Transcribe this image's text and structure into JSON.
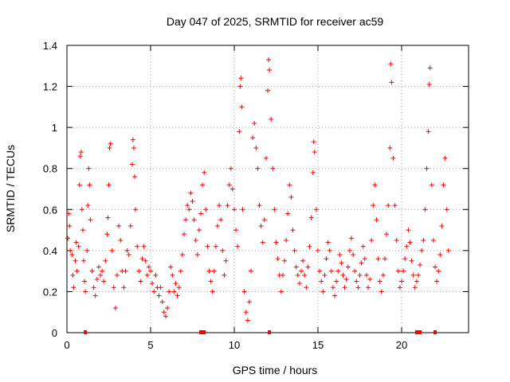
{
  "chart_data": {
    "type": "scatter",
    "title": "Day 047 of 2025, SRMTID for receiver ac59",
    "xlabel": "GPS time / hours",
    "ylabel": "SRMTID / TECUs",
    "xlim": [
      0,
      24
    ],
    "ylim": [
      0,
      1.4
    ],
    "xticks": [
      0,
      5,
      10,
      15,
      20
    ],
    "xtick_labels": [
      "0",
      "5",
      "10",
      "15",
      "20"
    ],
    "yticks": [
      0,
      0.2,
      0.4,
      0.6,
      0.8,
      1.0,
      1.2,
      1.4
    ],
    "ytick_labels": [
      "0",
      "0.2",
      "0.4",
      "0.6",
      "0.8",
      "1",
      "1.2",
      "1.4"
    ],
    "grid": true,
    "marker": "+",
    "color": "#ff0000",
    "series": [
      {
        "name": "SRMTID",
        "points": [
          [
            0.05,
            0.46
          ],
          [
            0.1,
            0.58
          ],
          [
            0.15,
            0.52
          ],
          [
            0.2,
            0.4
          ],
          [
            0.3,
            0.38
          ],
          [
            0.35,
            0.28
          ],
          [
            0.4,
            0.22
          ],
          [
            0.5,
            0.35
          ],
          [
            0.55,
            0.44
          ],
          [
            0.6,
            0.3
          ],
          [
            0.7,
            0.42
          ],
          [
            0.75,
            0.72
          ],
          [
            0.8,
            0.86
          ],
          [
            0.85,
            0.88
          ],
          [
            0.9,
            0.6
          ],
          [
            0.95,
            0.5
          ],
          [
            1.0,
            0.35
          ],
          [
            1.05,
            0.25
          ],
          [
            1.1,
            0.2
          ],
          [
            1.2,
            0.4
          ],
          [
            1.25,
            0.62
          ],
          [
            1.3,
            0.8
          ],
          [
            1.35,
            0.72
          ],
          [
            1.4,
            0.55
          ],
          [
            1.5,
            0.3
          ],
          [
            1.6,
            0.22
          ],
          [
            1.7,
            0.18
          ],
          [
            1.8,
            0.26
          ],
          [
            1.9,
            0.32
          ],
          [
            2.0,
            0.28
          ],
          [
            2.1,
            0.3
          ],
          [
            2.2,
            0.25
          ],
          [
            2.3,
            0.35
          ],
          [
            2.4,
            0.48
          ],
          [
            2.45,
            0.56
          ],
          [
            2.5,
            0.72
          ],
          [
            2.55,
            0.9
          ],
          [
            2.6,
            0.92
          ],
          [
            2.7,
            0.4
          ],
          [
            2.8,
            0.22
          ],
          [
            2.9,
            0.12
          ],
          [
            3.0,
            0.28
          ],
          [
            3.1,
            0.52
          ],
          [
            3.2,
            0.45
          ],
          [
            3.3,
            0.3
          ],
          [
            3.4,
            0.22
          ],
          [
            3.5,
            0.3
          ],
          [
            3.6,
            0.4
          ],
          [
            3.7,
            0.38
          ],
          [
            3.8,
            0.52
          ],
          [
            3.9,
            0.82
          ],
          [
            3.95,
            0.94
          ],
          [
            4.0,
            0.9
          ],
          [
            4.05,
            0.76
          ],
          [
            4.1,
            0.6
          ],
          [
            4.2,
            0.42
          ],
          [
            4.3,
            0.3
          ],
          [
            4.4,
            0.25
          ],
          [
            4.5,
            0.36
          ],
          [
            4.6,
            0.42
          ],
          [
            4.7,
            0.35
          ],
          [
            4.8,
            0.28
          ],
          [
            4.9,
            0.32
          ],
          [
            5.0,
            0.3
          ],
          [
            5.1,
            0.24
          ],
          [
            5.2,
            0.2
          ],
          [
            5.3,
            0.28
          ],
          [
            5.4,
            0.22
          ],
          [
            5.5,
            0.18
          ],
          [
            5.6,
            0.22
          ],
          [
            5.7,
            0.15
          ],
          [
            5.8,
            0.1
          ],
          [
            5.9,
            0.08
          ],
          [
            6.0,
            0.12
          ],
          [
            6.1,
            0.2
          ],
          [
            6.2,
            0.32
          ],
          [
            6.3,
            0.28
          ],
          [
            6.4,
            0.2
          ],
          [
            6.5,
            0.24
          ],
          [
            6.6,
            0.18
          ],
          [
            6.7,
            0.22
          ],
          [
            6.8,
            0.3
          ],
          [
            6.9,
            0.38
          ],
          [
            7.0,
            0.48
          ],
          [
            7.1,
            0.55
          ],
          [
            7.2,
            0.62
          ],
          [
            7.3,
            0.6
          ],
          [
            7.4,
            0.68
          ],
          [
            7.5,
            0.64
          ],
          [
            7.6,
            0.55
          ],
          [
            7.7,
            0.45
          ],
          [
            7.8,
            0.38
          ],
          [
            7.9,
            0.5
          ],
          [
            8.0,
            0.58
          ],
          [
            8.1,
            0.72
          ],
          [
            8.2,
            0.78
          ],
          [
            8.3,
            0.6
          ],
          [
            8.4,
            0.42
          ],
          [
            8.5,
            0.3
          ],
          [
            8.6,
            0.25
          ],
          [
            8.7,
            0.2
          ],
          [
            8.8,
            0.3
          ],
          [
            8.9,
            0.42
          ],
          [
            9.0,
            0.52
          ],
          [
            9.1,
            0.62
          ],
          [
            9.2,
            0.55
          ],
          [
            9.3,
            0.4
          ],
          [
            9.4,
            0.28
          ],
          [
            9.5,
            0.35
          ],
          [
            9.6,
            0.62
          ],
          [
            9.7,
            0.72
          ],
          [
            9.8,
            0.8
          ],
          [
            9.9,
            0.7
          ],
          [
            10.0,
            0.6
          ],
          [
            10.1,
            0.5
          ],
          [
            10.2,
            0.42
          ],
          [
            10.3,
            0.98
          ],
          [
            10.35,
            1.2
          ],
          [
            10.4,
            1.24
          ],
          [
            10.45,
            1.1
          ],
          [
            10.5,
            0.6
          ],
          [
            10.6,
            0.2
          ],
          [
            10.7,
            0.1
          ],
          [
            10.8,
            0.06
          ],
          [
            10.9,
            0.15
          ],
          [
            11.0,
            0.3
          ],
          [
            11.1,
            0.95
          ],
          [
            11.2,
            1.02
          ],
          [
            11.3,
            0.9
          ],
          [
            11.4,
            0.8
          ],
          [
            11.5,
            0.62
          ],
          [
            11.6,
            0.52
          ],
          [
            11.7,
            0.44
          ],
          [
            11.8,
            0.55
          ],
          [
            11.9,
            0.85
          ],
          [
            12.0,
            1.18
          ],
          [
            12.05,
            1.33
          ],
          [
            12.1,
            1.28
          ],
          [
            12.2,
            1.04
          ],
          [
            12.3,
            0.8
          ],
          [
            12.4,
            0.6
          ],
          [
            12.5,
            0.44
          ],
          [
            12.6,
            0.36
          ],
          [
            12.7,
            0.28
          ],
          [
            12.8,
            0.2
          ],
          [
            12.9,
            0.28
          ],
          [
            13.0,
            0.35
          ],
          [
            13.1,
            0.45
          ],
          [
            13.2,
            0.58
          ],
          [
            13.3,
            0.72
          ],
          [
            13.4,
            0.66
          ],
          [
            13.5,
            0.5
          ],
          [
            13.6,
            0.4
          ],
          [
            13.7,
            0.32
          ],
          [
            13.8,
            0.28
          ],
          [
            13.9,
            0.24
          ],
          [
            14.0,
            0.3
          ],
          [
            14.1,
            0.35
          ],
          [
            14.2,
            0.28
          ],
          [
            14.3,
            0.22
          ],
          [
            14.4,
            0.32
          ],
          [
            14.5,
            0.42
          ],
          [
            14.6,
            0.56
          ],
          [
            14.7,
            0.78
          ],
          [
            14.75,
            0.93
          ],
          [
            14.8,
            0.88
          ],
          [
            14.9,
            0.6
          ],
          [
            15.0,
            0.4
          ],
          [
            15.1,
            0.3
          ],
          [
            15.2,
            0.25
          ],
          [
            15.3,
            0.2
          ],
          [
            15.4,
            0.28
          ],
          [
            15.5,
            0.36
          ],
          [
            15.6,
            0.44
          ],
          [
            15.7,
            0.4
          ],
          [
            15.8,
            0.3
          ],
          [
            15.9,
            0.22
          ],
          [
            16.0,
            0.18
          ],
          [
            16.1,
            0.25
          ],
          [
            16.2,
            0.3
          ],
          [
            16.3,
            0.38
          ],
          [
            16.4,
            0.34
          ],
          [
            16.5,
            0.28
          ],
          [
            16.6,
            0.22
          ],
          [
            16.7,
            0.26
          ],
          [
            16.8,
            0.32
          ],
          [
            16.9,
            0.4
          ],
          [
            17.0,
            0.46
          ],
          [
            17.1,
            0.38
          ],
          [
            17.2,
            0.3
          ],
          [
            17.3,
            0.25
          ],
          [
            17.4,
            0.22
          ],
          [
            17.5,
            0.28
          ],
          [
            17.6,
            0.34
          ],
          [
            17.7,
            0.42
          ],
          [
            17.8,
            0.36
          ],
          [
            17.9,
            0.28
          ],
          [
            18.0,
            0.22
          ],
          [
            18.1,
            0.26
          ],
          [
            18.2,
            0.45
          ],
          [
            18.3,
            0.62
          ],
          [
            18.4,
            0.72
          ],
          [
            18.5,
            0.55
          ],
          [
            18.6,
            0.36
          ],
          [
            18.7,
            0.25
          ],
          [
            18.8,
            0.2
          ],
          [
            18.9,
            0.28
          ],
          [
            19.0,
            0.36
          ],
          [
            19.1,
            0.48
          ],
          [
            19.2,
            0.62
          ],
          [
            19.3,
            0.9
          ],
          [
            19.35,
            1.31
          ],
          [
            19.4,
            1.22
          ],
          [
            19.5,
            0.85
          ],
          [
            19.6,
            0.62
          ],
          [
            19.7,
            0.45
          ],
          [
            19.8,
            0.3
          ],
          [
            19.9,
            0.22
          ],
          [
            20.0,
            0.25
          ],
          [
            20.1,
            0.3
          ],
          [
            20.2,
            0.36
          ],
          [
            20.3,
            0.42
          ],
          [
            20.4,
            0.5
          ],
          [
            20.5,
            0.44
          ],
          [
            20.6,
            0.35
          ],
          [
            20.7,
            0.28
          ],
          [
            20.8,
            0.22
          ],
          [
            20.9,
            0.25
          ],
          [
            21.0,
            0.28
          ],
          [
            21.1,
            0.33
          ],
          [
            21.2,
            0.4
          ],
          [
            21.3,
            0.45
          ],
          [
            21.4,
            0.6
          ],
          [
            21.5,
            0.8
          ],
          [
            21.6,
            0.98
          ],
          [
            21.65,
            1.21
          ],
          [
            21.7,
            1.29
          ],
          [
            21.8,
            0.72
          ],
          [
            21.9,
            0.45
          ],
          [
            22.0,
            0.32
          ],
          [
            22.1,
            0.25
          ],
          [
            22.2,
            0.3
          ],
          [
            22.3,
            0.38
          ],
          [
            22.4,
            0.52
          ],
          [
            22.5,
            0.72
          ],
          [
            22.6,
            0.85
          ],
          [
            22.7,
            0.6
          ],
          [
            22.8,
            0.4
          ]
        ]
      }
    ],
    "baseline_markers_x": [
      1.1,
      8.0,
      8.1,
      8.2,
      12.1,
      20.9,
      21.0,
      21.1,
      22.0
    ]
  }
}
